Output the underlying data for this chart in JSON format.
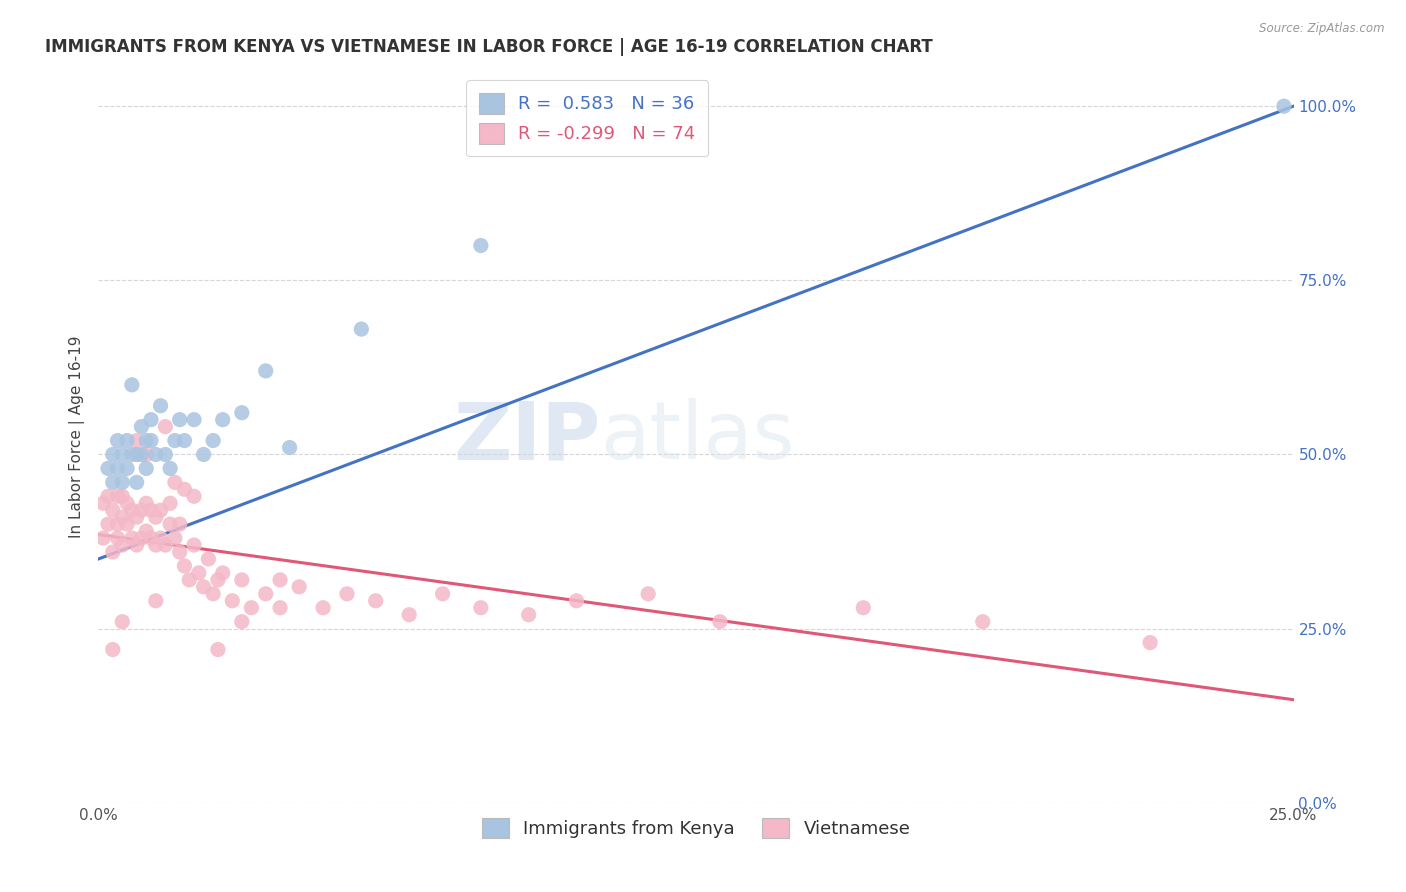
{
  "title": "IMMIGRANTS FROM KENYA VS VIETNAMESE IN LABOR FORCE | AGE 16-19 CORRELATION CHART",
  "source": "Source: ZipAtlas.com",
  "ylabel": "In Labor Force | Age 16-19",
  "xlim": [
    0.0,
    0.25
  ],
  "ylim": [
    0.0,
    1.05
  ],
  "xticks": [
    0.0,
    0.05,
    0.1,
    0.15,
    0.2,
    0.25
  ],
  "xtick_labels": [
    "0.0%",
    "",
    "",
    "",
    "",
    "25.0%"
  ],
  "ytick_labels_right": [
    "0.0%",
    "25.0%",
    "50.0%",
    "75.0%",
    "100.0%"
  ],
  "yticks": [
    0.0,
    0.25,
    0.5,
    0.75,
    1.0
  ],
  "kenya_color": "#a8c4e0",
  "vietnamese_color": "#f4b8c8",
  "kenya_line_color": "#4472c4",
  "vietnamese_line_color": "#e05878",
  "kenya_R": 0.583,
  "kenya_N": 36,
  "vietnamese_R": -0.299,
  "vietnamese_N": 74,
  "watermark_zip": "ZIP",
  "watermark_atlas": "atlas",
  "kenya_scatter_x": [
    0.002,
    0.003,
    0.003,
    0.004,
    0.004,
    0.005,
    0.005,
    0.006,
    0.006,
    0.007,
    0.007,
    0.008,
    0.008,
    0.009,
    0.009,
    0.01,
    0.01,
    0.011,
    0.011,
    0.012,
    0.013,
    0.014,
    0.015,
    0.016,
    0.017,
    0.018,
    0.02,
    0.022,
    0.024,
    0.026,
    0.03,
    0.035,
    0.04,
    0.055,
    0.08,
    0.248
  ],
  "kenya_scatter_y": [
    0.48,
    0.5,
    0.46,
    0.52,
    0.48,
    0.5,
    0.46,
    0.52,
    0.48,
    0.5,
    0.6,
    0.5,
    0.46,
    0.54,
    0.5,
    0.52,
    0.48,
    0.52,
    0.55,
    0.5,
    0.57,
    0.5,
    0.48,
    0.52,
    0.55,
    0.52,
    0.55,
    0.5,
    0.52,
    0.55,
    0.56,
    0.62,
    0.51,
    0.68,
    0.8,
    1.0
  ],
  "vietnamese_scatter_x": [
    0.001,
    0.001,
    0.002,
    0.002,
    0.003,
    0.003,
    0.004,
    0.004,
    0.004,
    0.005,
    0.005,
    0.005,
    0.006,
    0.006,
    0.007,
    0.007,
    0.008,
    0.008,
    0.009,
    0.009,
    0.01,
    0.01,
    0.011,
    0.011,
    0.012,
    0.012,
    0.013,
    0.013,
    0.014,
    0.015,
    0.015,
    0.016,
    0.017,
    0.017,
    0.018,
    0.019,
    0.02,
    0.021,
    0.022,
    0.023,
    0.024,
    0.025,
    0.026,
    0.028,
    0.03,
    0.032,
    0.035,
    0.038,
    0.042,
    0.047,
    0.052,
    0.058,
    0.065,
    0.072,
    0.08,
    0.09,
    0.1,
    0.115,
    0.13,
    0.16,
    0.003,
    0.005,
    0.008,
    0.01,
    0.012,
    0.014,
    0.016,
    0.018,
    0.02,
    0.025,
    0.03,
    0.038,
    0.185,
    0.22
  ],
  "vietnamese_scatter_y": [
    0.43,
    0.38,
    0.4,
    0.44,
    0.42,
    0.36,
    0.4,
    0.44,
    0.38,
    0.41,
    0.44,
    0.37,
    0.4,
    0.43,
    0.38,
    0.42,
    0.37,
    0.41,
    0.38,
    0.42,
    0.39,
    0.43,
    0.38,
    0.42,
    0.37,
    0.41,
    0.38,
    0.42,
    0.37,
    0.4,
    0.43,
    0.38,
    0.36,
    0.4,
    0.34,
    0.32,
    0.37,
    0.33,
    0.31,
    0.35,
    0.3,
    0.32,
    0.33,
    0.29,
    0.32,
    0.28,
    0.3,
    0.32,
    0.31,
    0.28,
    0.3,
    0.29,
    0.27,
    0.3,
    0.28,
    0.27,
    0.29,
    0.3,
    0.26,
    0.28,
    0.22,
    0.26,
    0.52,
    0.5,
    0.29,
    0.54,
    0.46,
    0.45,
    0.44,
    0.22,
    0.26,
    0.28,
    0.26,
    0.23
  ],
  "grid_color": "#cccccc",
  "background_color": "#ffffff",
  "title_fontsize": 12,
  "axis_label_fontsize": 11,
  "tick_fontsize": 11,
  "legend_fontsize": 13,
  "kenya_line_x0": 0.0,
  "kenya_line_y0": 0.35,
  "kenya_line_x1": 0.25,
  "kenya_line_y1": 1.0,
  "viet_line_x0": 0.0,
  "viet_line_y0": 0.385,
  "viet_line_x1": 0.25,
  "viet_line_y1": 0.148
}
